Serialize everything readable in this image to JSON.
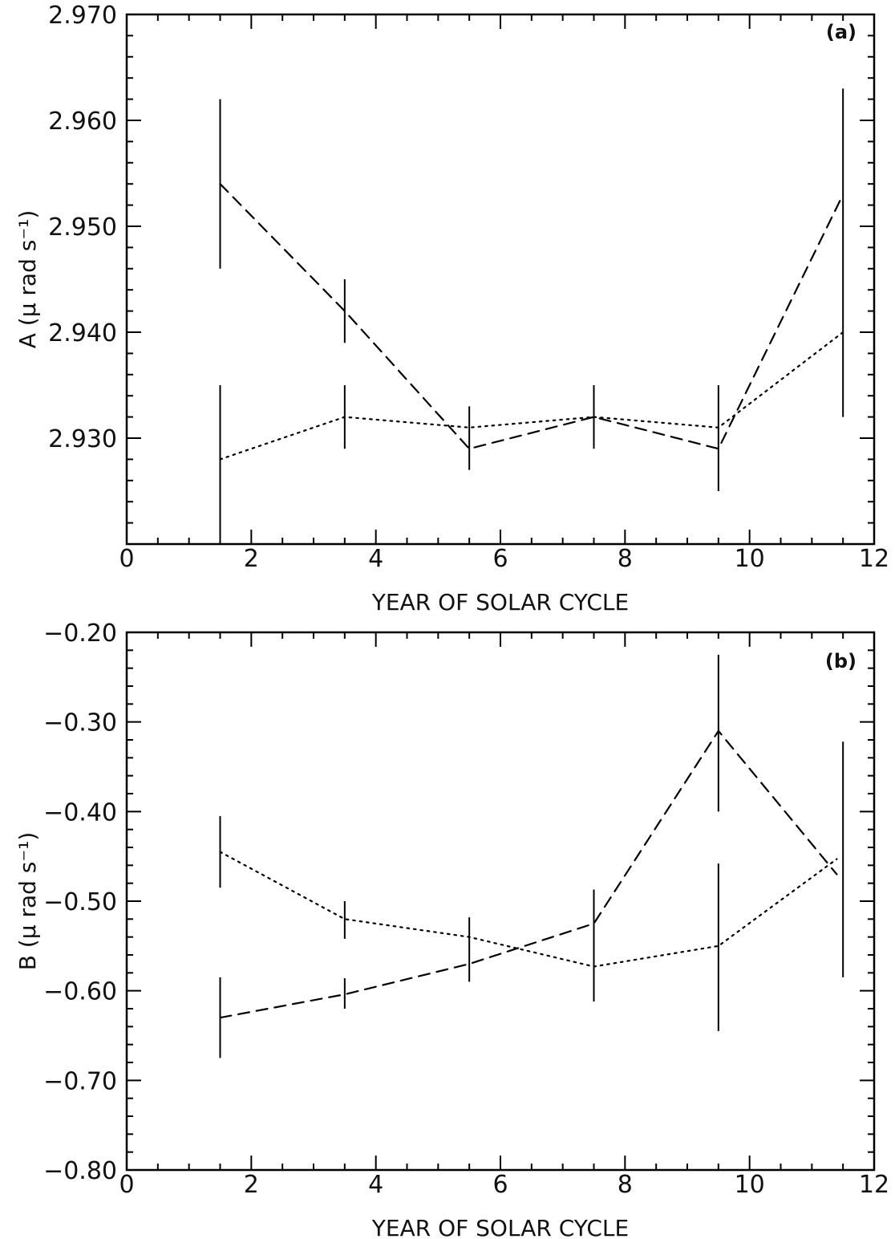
{
  "chart_data": [
    {
      "type": "line",
      "panel_label": "(a)",
      "xlabel": "YEAR OF SOLAR CYCLE",
      "ylabel": "A (μ rad s⁻¹)",
      "xlim": [
        0,
        12
      ],
      "ylim": [
        2.92,
        2.97
      ],
      "x_ticks": [
        0,
        2,
        4,
        6,
        8,
        10,
        12
      ],
      "y_ticks": [
        2.93,
        2.94,
        2.95,
        2.96,
        2.97
      ],
      "y_tick_labels": [
        "2.930",
        "2.940",
        "2.950",
        "2.960",
        "2.970"
      ],
      "x": [
        1.5,
        3.5,
        5.5,
        7.5,
        9.5,
        11.5
      ],
      "series": [
        {
          "style": "dashed",
          "values": [
            2.954,
            2.942,
            2.929,
            2.932,
            2.929,
            2.953
          ]
        },
        {
          "style": "dotted",
          "values": [
            2.928,
            2.932,
            2.931,
            2.932,
            2.931,
            2.94
          ]
        }
      ],
      "error_bars": [
        {
          "x": 1.5,
          "low": 2.946,
          "high": 2.962
        },
        {
          "x": 1.5,
          "low": 2.92,
          "high": 2.935
        },
        {
          "x": 3.5,
          "low": 2.939,
          "high": 2.945
        },
        {
          "x": 3.5,
          "low": 2.929,
          "high": 2.935
        },
        {
          "x": 5.5,
          "low": 2.927,
          "high": 2.933
        },
        {
          "x": 7.5,
          "low": 2.929,
          "high": 2.935
        },
        {
          "x": 9.5,
          "low": 2.925,
          "high": 2.935
        },
        {
          "x": 11.5,
          "low": 2.932,
          "high": 2.963
        }
      ]
    },
    {
      "type": "line",
      "panel_label": "(b)",
      "xlabel": "YEAR OF SOLAR CYCLE",
      "ylabel": "B (μ rad s⁻¹)",
      "xlim": [
        0,
        12
      ],
      "ylim": [
        -0.8,
        -0.2
      ],
      "x_ticks": [
        0,
        2,
        4,
        6,
        8,
        10,
        12
      ],
      "y_ticks": [
        -0.8,
        -0.7,
        -0.6,
        -0.5,
        -0.4,
        -0.3,
        -0.2
      ],
      "y_tick_labels": [
        "−0.80",
        "−0.70",
        "−0.60",
        "−0.50",
        "−0.40",
        "−0.30",
        "−0.20"
      ],
      "x": [
        1.5,
        3.5,
        5.5,
        7.5,
        9.5,
        11.4
      ],
      "series": [
        {
          "style": "dashed",
          "values": [
            -0.63,
            -0.604,
            -0.57,
            -0.525,
            -0.31,
            -0.47
          ]
        },
        {
          "style": "dotted",
          "values": [
            -0.445,
            -0.52,
            -0.54,
            -0.573,
            -0.55,
            -0.453
          ]
        }
      ],
      "error_bars": [
        {
          "x": 1.5,
          "low": -0.485,
          "high": -0.405
        },
        {
          "x": 1.5,
          "low": -0.675,
          "high": -0.585
        },
        {
          "x": 3.5,
          "low": -0.542,
          "high": -0.5
        },
        {
          "x": 3.5,
          "low": -0.62,
          "high": -0.586
        },
        {
          "x": 5.5,
          "low": -0.59,
          "high": -0.518
        },
        {
          "x": 7.5,
          "low": -0.612,
          "high": -0.487
        },
        {
          "x": 9.5,
          "low": -0.4,
          "high": -0.225
        },
        {
          "x": 9.5,
          "low": -0.645,
          "high": -0.458
        },
        {
          "x": 11.5,
          "low": -0.585,
          "high": -0.322
        }
      ]
    }
  ]
}
